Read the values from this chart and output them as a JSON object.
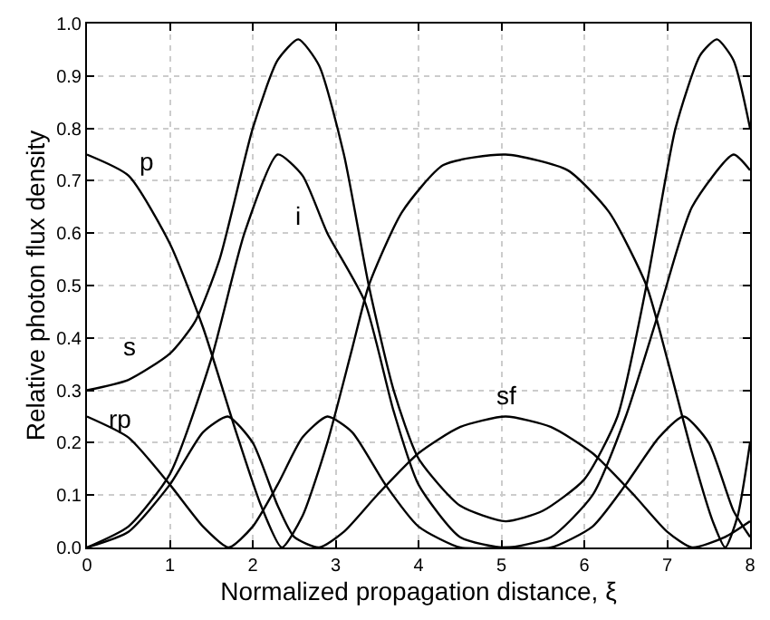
{
  "chart_data": {
    "type": "line",
    "xlabel": "Normalized propagation distance, ξ",
    "ylabel": "Relative photon flux density",
    "xlim": [
      0,
      8
    ],
    "xticks": [
      0,
      1,
      2,
      3,
      4,
      5,
      6,
      7,
      8
    ],
    "ylim": [
      0,
      1
    ],
    "yticks": [
      {
        "value": 0,
        "label": "0.0"
      },
      0.1,
      0.2,
      0.3,
      0.4,
      0.5,
      0.6,
      0.7,
      0.8,
      0.9,
      {
        "value": 1,
        "label": "1.0"
      }
    ],
    "grid": true,
    "legend": false,
    "marker": "none",
    "line_style": "solid",
    "series": [
      {
        "name": "p",
        "color": "#000000",
        "x": [
          0,
          0.5,
          1,
          1.4,
          1.8,
          2.1,
          2.35,
          2.6,
          2.9,
          3.2,
          3.4,
          3.8,
          4.3,
          5.05,
          5.8,
          6.3,
          6.75,
          7.0,
          7.3,
          7.55,
          7.7,
          7.85,
          8
        ],
        "values": [
          0.75,
          0.71,
          0.58,
          0.42,
          0.22,
          0.08,
          0,
          0.06,
          0.2,
          0.38,
          0.5,
          0.64,
          0.73,
          0.75,
          0.72,
          0.64,
          0.5,
          0.36,
          0.18,
          0.05,
          0,
          0.06,
          0.2
        ]
      },
      {
        "name": "s",
        "color": "#000000",
        "x": [
          0,
          0.5,
          1,
          1.3,
          1.6,
          2,
          2.3,
          2.55,
          2.8,
          3.1,
          3.4,
          3.7,
          4.0,
          4.5,
          5.05,
          5.5,
          6,
          6.4,
          6.75,
          7.1,
          7.4,
          7.6,
          7.8,
          8
        ],
        "values": [
          0.3,
          0.32,
          0.37,
          0.43,
          0.55,
          0.8,
          0.93,
          0.97,
          0.92,
          0.75,
          0.5,
          0.3,
          0.17,
          0.08,
          0.05,
          0.07,
          0.13,
          0.25,
          0.5,
          0.8,
          0.94,
          0.97,
          0.93,
          0.8
        ]
      },
      {
        "name": "i",
        "color": "#000000",
        "x": [
          0,
          0.5,
          1,
          1.5,
          1.9,
          2.3,
          2.6,
          2.9,
          3.35,
          3.7,
          4.0,
          4.5,
          5.05,
          5.6,
          6.1,
          6.5,
          6.9,
          7.3,
          7.8,
          8
        ],
        "values": [
          0,
          0.04,
          0.14,
          0.36,
          0.6,
          0.75,
          0.71,
          0.6,
          0.47,
          0.26,
          0.12,
          0.02,
          0,
          0.02,
          0.1,
          0.25,
          0.45,
          0.65,
          0.75,
          0.72
        ]
      },
      {
        "name": "rp",
        "color": "#000000",
        "x": [
          0,
          0.5,
          1,
          1.4,
          1.71,
          2.0,
          2.3,
          2.6,
          2.9,
          3.2,
          3.6,
          4,
          4.5,
          5.05,
          5.6,
          6.1,
          6.5,
          6.9,
          7.2,
          7.5,
          7.8,
          8
        ],
        "values": [
          0.25,
          0.21,
          0.12,
          0.04,
          0,
          0.04,
          0.12,
          0.21,
          0.25,
          0.22,
          0.12,
          0.04,
          0,
          0,
          0,
          0.04,
          0.12,
          0.21,
          0.25,
          0.2,
          0.07,
          0.02
        ]
      },
      {
        "name": "sf",
        "color": "#000000",
        "x": [
          0,
          0.5,
          1,
          1.4,
          1.7,
          2.0,
          2.3,
          2.5,
          2.8,
          3.1,
          3.5,
          4,
          4.5,
          5.05,
          5.6,
          6.1,
          6.6,
          7.0,
          7.3,
          7.7,
          8
        ],
        "values": [
          0,
          0.03,
          0.12,
          0.22,
          0.25,
          0.2,
          0.08,
          0.02,
          0,
          0.03,
          0.1,
          0.18,
          0.23,
          0.25,
          0.23,
          0.18,
          0.1,
          0.03,
          0,
          0.02,
          0.05
        ]
      }
    ]
  }
}
